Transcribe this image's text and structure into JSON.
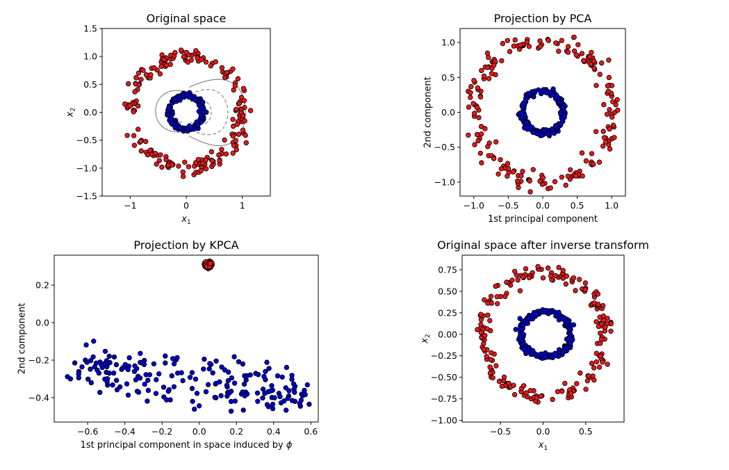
{
  "chart_data": [
    {
      "id": "original",
      "type": "scatter",
      "title": "Original space",
      "xlabel": "x1",
      "ylabel": "x2",
      "xlim": [
        -1.5,
        1.5
      ],
      "ylim": [
        -1.5,
        1.5
      ],
      "xticks": [
        -1,
        0,
        1
      ],
      "xtick_labels": [
        "−1",
        "0",
        "1"
      ],
      "yticks": [
        -1.5,
        -1.0,
        -0.5,
        0.0,
        0.5,
        1.0,
        1.5
      ],
      "ytick_labels": [
        "−1.5",
        "−1.0",
        "−0.5",
        "0.0",
        "0.5",
        "1.0",
        "1.5"
      ],
      "contours": true,
      "series": [
        {
          "color": "#e41a1c",
          "shape": "ring",
          "radius": 1.0,
          "n": 200
        },
        {
          "color": "#0000cc",
          "shape": "ring",
          "radius": 0.3,
          "n": 200
        }
      ]
    },
    {
      "id": "pca",
      "type": "scatter",
      "title": "Projection by PCA",
      "xlabel": "1st principal component",
      "ylabel": "2nd component",
      "xlim": [
        -1.2,
        1.2
      ],
      "ylim": [
        -1.2,
        1.2
      ],
      "xticks": [
        -1.0,
        -0.5,
        0.0,
        0.5,
        1.0
      ],
      "xtick_labels": [
        "−1.0",
        "−0.5",
        "0.0",
        "0.5",
        "1.0"
      ],
      "yticks": [
        -1.0,
        -0.5,
        0.0,
        0.5,
        1.0
      ],
      "ytick_labels": [
        "−1.0",
        "−0.5",
        "0.0",
        "0.5",
        "1.0"
      ],
      "series": [
        {
          "color": "#e41a1c",
          "shape": "ring",
          "radius": 1.0,
          "n": 200
        },
        {
          "color": "#0000cc",
          "shape": "ring",
          "radius": 0.3,
          "n": 200
        }
      ]
    },
    {
      "id": "kpca",
      "type": "scatter",
      "title": "Projection by KPCA",
      "xlabel": "1st principal component in space induced by ϕ",
      "ylabel": "2nd component",
      "xlim": [
        -0.78,
        0.64
      ],
      "ylim": [
        -0.53,
        0.36
      ],
      "xticks": [
        -0.6,
        -0.4,
        -0.2,
        0.0,
        0.2,
        0.4,
        0.6
      ],
      "xtick_labels": [
        "−0.6",
        "−0.4",
        "−0.2",
        "0.0",
        "0.2",
        "0.4",
        "0.6"
      ],
      "yticks": [
        -0.4,
        -0.2,
        0.0,
        0.2
      ],
      "ytick_labels": [
        "−0.4",
        "−0.2",
        "0.0",
        "0.2"
      ],
      "series": [
        {
          "color": "#e41a1c",
          "shape": "cluster",
          "center": [
            0.05,
            0.31
          ],
          "n": 200
        },
        {
          "color": "#0000cc",
          "shape": "band",
          "n": 200
        }
      ]
    },
    {
      "id": "inverse",
      "type": "scatter",
      "title": "Original space after inverse transform",
      "xlabel": "x1",
      "ylabel": "x2",
      "xlim": [
        -0.95,
        0.95
      ],
      "ylim": [
        -1.02,
        0.92
      ],
      "xticks": [
        -0.5,
        0.0,
        0.5
      ],
      "xtick_labels": [
        "−0.5",
        "0.0",
        "0.5"
      ],
      "yticks": [
        -1.0,
        -0.75,
        -0.5,
        -0.25,
        0.0,
        0.25,
        0.5,
        0.75
      ],
      "ytick_labels": [
        "−1.00",
        "−0.75",
        "−0.50",
        "−0.25",
        "0.00",
        "0.25",
        "0.50",
        "0.75"
      ],
      "series": [
        {
          "color": "#e41a1c",
          "shape": "ring",
          "radius": 0.72,
          "spread": 0.14,
          "n": 200
        },
        {
          "color": "#0000cc",
          "shape": "ring",
          "radius": 0.26,
          "n": 200
        }
      ]
    }
  ]
}
